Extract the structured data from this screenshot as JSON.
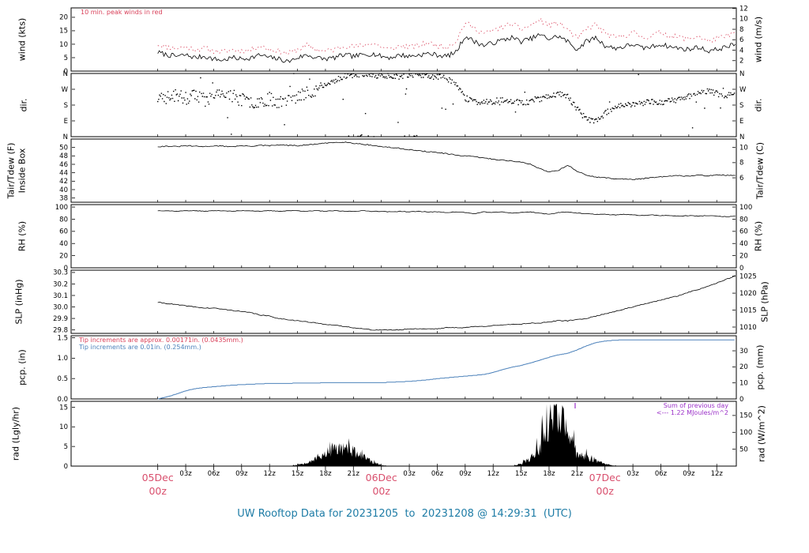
{
  "title": "UW Rooftop Data for 20231205  to  20231208 @ 14:29:31  (UTC)",
  "colors": {
    "day_label": "#d9506e",
    "title": "#1e7ca6",
    "purple": "#9b30c8",
    "peak_red": "#d9415a",
    "precip_blue": "#4d82bb"
  },
  "x_axis": {
    "units": "hours relative to 05Dec 00z (UTC)",
    "hours_domain": [
      -9.3,
      62.1
    ],
    "day_ticks": [
      {
        "hour": 0,
        "label": "05Dec",
        "sub": "00z"
      },
      {
        "hour": 24,
        "label": "06Dec",
        "sub": "00z"
      },
      {
        "hour": 48,
        "label": "07Dec",
        "sub": "00z"
      }
    ],
    "minor_ticks": [
      {
        "hour": 3,
        "label": "03z"
      },
      {
        "hour": 6,
        "label": "06z"
      },
      {
        "hour": 9,
        "label": "09z"
      },
      {
        "hour": 12,
        "label": "12z"
      },
      {
        "hour": 15,
        "label": "15z"
      },
      {
        "hour": 18,
        "label": "18z"
      },
      {
        "hour": 21,
        "label": "21z"
      },
      {
        "hour": 27,
        "label": "03z"
      },
      {
        "hour": 30,
        "label": "06z"
      },
      {
        "hour": 33,
        "label": "09z"
      },
      {
        "hour": 36,
        "label": "12z"
      },
      {
        "hour": 39,
        "label": "15z"
      },
      {
        "hour": 42,
        "label": "18z"
      },
      {
        "hour": 45,
        "label": "21z"
      },
      {
        "hour": 51,
        "label": "03z"
      },
      {
        "hour": 54,
        "label": "06z"
      },
      {
        "hour": 57,
        "label": "09z"
      },
      {
        "hour": 60,
        "label": "12z"
      }
    ]
  },
  "chart_data": [
    {
      "name": "wind",
      "type": "line",
      "ylabel_left": "wind (kts)",
      "ylabel_right": "wind (m/s)",
      "ylim": [
        0,
        23.5
      ],
      "yticks_left": [
        {
          "v": 0,
          "label": "0"
        },
        {
          "v": 5,
          "label": "5"
        },
        {
          "v": 10,
          "label": "10"
        },
        {
          "v": 15,
          "label": "15"
        },
        {
          "v": 20,
          "label": "20"
        }
      ],
      "yticks_right": [
        {
          "v": 3.89,
          "label": "2"
        },
        {
          "v": 7.78,
          "label": "4"
        },
        {
          "v": 11.66,
          "label": "6"
        },
        {
          "v": 15.55,
          "label": "8"
        },
        {
          "v": 19.44,
          "label": "10"
        },
        {
          "v": 23.33,
          "label": "12"
        }
      ],
      "annotation": "10 min. peak winds in red",
      "annotation_color": "#d9415a",
      "series": [
        {
          "name": "wind_speed_kts",
          "color": "#000000",
          "hourly": [
            7,
            6,
            5.5,
            6,
            5,
            5.5,
            4.5,
            4,
            5,
            4.5,
            5,
            6,
            5,
            4.5,
            3.5,
            5,
            6,
            5,
            4.5,
            5,
            6,
            5.5,
            6,
            6.5,
            5.5,
            5,
            6,
            5.5,
            6,
            6.5,
            6,
            5.5,
            7,
            13,
            11,
            9.5,
            10.5,
            11.5,
            12.5,
            11,
            12,
            13.5,
            12,
            13,
            11,
            8,
            11,
            12.5,
            9.5,
            8.5,
            9,
            10,
            8.5,
            9,
            10,
            9,
            8.5,
            8,
            9,
            7.5,
            8,
            9,
            10
          ]
        },
        {
          "name": "peak_wind_kts",
          "color": "#d9415a",
          "style": "dashed",
          "hourly": [
            10,
            9,
            8.5,
            9,
            8,
            8.5,
            7.5,
            7,
            8,
            7.5,
            8,
            9.5,
            8,
            7.5,
            6.5,
            8,
            9.5,
            8,
            7.5,
            8,
            9.5,
            9,
            9.5,
            10.5,
            9,
            8,
            9.5,
            9,
            9.5,
            10.5,
            9.5,
            9,
            11,
            18,
            16,
            14,
            15,
            16.5,
            17.5,
            15.5,
            17,
            19,
            17,
            18,
            15.5,
            12,
            15.5,
            17.5,
            14,
            12.5,
            13,
            14.5,
            12.5,
            13,
            14.5,
            13,
            12.5,
            12,
            13,
            11,
            12,
            13,
            14.5
          ]
        }
      ]
    },
    {
      "name": "dir",
      "type": "scatter",
      "ylabel_left": "dir.",
      "ylabel_right": "dir.",
      "ylim": [
        0,
        360
      ],
      "yticks_left": [
        {
          "v": 0,
          "label": "N"
        },
        {
          "v": 90,
          "label": "E"
        },
        {
          "v": 180,
          "label": "S"
        },
        {
          "v": 270,
          "label": "W"
        },
        {
          "v": 360,
          "label": "N"
        }
      ],
      "yticks_right": [
        {
          "v": 0,
          "label": "N"
        },
        {
          "v": 90,
          "label": "E"
        },
        {
          "v": 180,
          "label": "S"
        },
        {
          "v": 270,
          "label": "W"
        },
        {
          "v": 360,
          "label": "N"
        }
      ],
      "series": [
        {
          "name": "wind_direction_deg",
          "color": "#000000",
          "hourly": [
            210,
            225,
            235,
            220,
            230,
            215,
            225,
            240,
            230,
            210,
            195,
            205,
            215,
            200,
            210,
            225,
            250,
            270,
            290,
            320,
            345,
            350,
            355,
            350,
            345,
            350,
            340,
            355,
            350,
            345,
            340,
            335,
            300,
            220,
            200,
            195,
            200,
            210,
            205,
            195,
            200,
            215,
            230,
            245,
            230,
            160,
            100,
            90,
            130,
            170,
            185,
            180,
            190,
            200,
            195,
            205,
            210,
            230,
            250,
            260,
            245,
            235,
            240
          ]
        }
      ]
    },
    {
      "name": "temp",
      "type": "line",
      "ylabel_left": "Tair/Tdew (F)",
      "ylabel_left2": "Inside Box",
      "ylabel_right": "Tair/Tdew (C)",
      "ylim": [
        37,
        52
      ],
      "yticks_left": [
        {
          "v": 38,
          "label": "38"
        },
        {
          "v": 40,
          "label": "40"
        },
        {
          "v": 42,
          "label": "42"
        },
        {
          "v": 44,
          "label": "44"
        },
        {
          "v": 46,
          "label": "46"
        },
        {
          "v": 48,
          "label": "48"
        },
        {
          "v": 50,
          "label": "50"
        }
      ],
      "yticks_right": [
        {
          "v": 42.8,
          "label": "6"
        },
        {
          "v": 46.4,
          "label": "8"
        },
        {
          "v": 50,
          "label": "10"
        }
      ],
      "series": [
        {
          "name": "tair_f",
          "color": "#000000",
          "hourly": [
            50.2,
            50.3,
            50.2,
            50.4,
            50.3,
            50.2,
            50.4,
            50.3,
            50.2,
            50.4,
            50.3,
            50.5,
            50.4,
            50.6,
            50.5,
            50.4,
            50.6,
            50.8,
            51.0,
            51.2,
            51.3,
            51.0,
            50.8,
            50.5,
            50.2,
            50.0,
            49.8,
            49.5,
            49.2,
            49.0,
            48.8,
            48.5,
            48.2,
            48.0,
            47.8,
            47.5,
            47.2,
            47.0,
            46.8,
            46.5,
            46.0,
            45.0,
            44.2,
            44.6,
            45.8,
            44.4,
            43.4,
            43.0,
            42.8,
            42.6,
            42.5,
            42.4,
            42.6,
            42.8,
            43.0,
            43.2,
            43.3,
            43.2,
            43.4,
            43.3,
            43.5,
            43.4,
            43.3
          ]
        }
      ]
    },
    {
      "name": "rh",
      "type": "line",
      "ylabel_left": "RH (%)",
      "ylabel_right": "RH (%)",
      "ylim": [
        0,
        104
      ],
      "yticks_left": [
        {
          "v": 0,
          "label": "0"
        },
        {
          "v": 20,
          "label": "20"
        },
        {
          "v": 40,
          "label": "40"
        },
        {
          "v": 60,
          "label": "60"
        },
        {
          "v": 80,
          "label": "80"
        },
        {
          "v": 100,
          "label": "100"
        }
      ],
      "yticks_right": [
        {
          "v": 0,
          "label": "0"
        },
        {
          "v": 20,
          "label": "20"
        },
        {
          "v": 40,
          "label": "40"
        },
        {
          "v": 60,
          "label": "60"
        },
        {
          "v": 80,
          "label": "80"
        },
        {
          "v": 100,
          "label": "100"
        }
      ],
      "series": [
        {
          "name": "rh_pct",
          "color": "#000000",
          "hourly": [
            94,
            94,
            93,
            94,
            94,
            93,
            94,
            94,
            93,
            94,
            94,
            93,
            94,
            93,
            94,
            94,
            93,
            94,
            93,
            94,
            93,
            93,
            94,
            93,
            93,
            92,
            93,
            92,
            93,
            92,
            92,
            91,
            92,
            91,
            89,
            92,
            91,
            92,
            90,
            91,
            92,
            90,
            88,
            91,
            92,
            90,
            89,
            88,
            88,
            87,
            88,
            87,
            86,
            87,
            86,
            86,
            85,
            86,
            85,
            86,
            85,
            84,
            85
          ]
        }
      ]
    },
    {
      "name": "slp",
      "type": "line",
      "ylabel_left": "SLP (inHg)",
      "ylabel_right": "SLP (hPa)",
      "ylim": [
        29.77,
        30.32
      ],
      "yticks_left": [
        {
          "v": 29.8,
          "label": "29.8"
        },
        {
          "v": 29.9,
          "label": "29.9"
        },
        {
          "v": 30.0,
          "label": "30.0"
        },
        {
          "v": 30.1,
          "label": "30.1"
        },
        {
          "v": 30.2,
          "label": "30.2"
        },
        {
          "v": 30.3,
          "label": "30.3"
        }
      ],
      "yticks_right": [
        {
          "v": 29.825,
          "label": "1010"
        },
        {
          "v": 29.973,
          "label": "1015"
        },
        {
          "v": 30.12,
          "label": "1020"
        },
        {
          "v": 30.268,
          "label": "1025"
        }
      ],
      "series": [
        {
          "name": "slp_inhg",
          "color": "#000000",
          "hourly": [
            30.04,
            30.03,
            30.02,
            30.01,
            30.0,
            29.99,
            29.99,
            29.98,
            29.97,
            29.96,
            29.95,
            29.93,
            29.92,
            29.9,
            29.89,
            29.88,
            29.87,
            29.86,
            29.85,
            29.84,
            29.83,
            29.82,
            29.81,
            29.8,
            29.8,
            29.8,
            29.8,
            29.81,
            29.81,
            29.81,
            29.81,
            29.82,
            29.82,
            29.82,
            29.83,
            29.83,
            29.84,
            29.84,
            29.85,
            29.85,
            29.86,
            29.86,
            29.87,
            29.88,
            29.88,
            29.89,
            29.9,
            29.92,
            29.94,
            29.96,
            29.98,
            30.0,
            30.02,
            30.04,
            30.06,
            30.08,
            30.1,
            30.13,
            30.15,
            30.18,
            30.21,
            30.24,
            30.27
          ]
        }
      ]
    },
    {
      "name": "pcp",
      "type": "line",
      "ylabel_left": "pcp. (in)",
      "ylabel_right": "pcp. (mm)",
      "ylim": [
        0,
        1.55
      ],
      "yticks_left": [
        {
          "v": 0,
          "label": "0.0"
        },
        {
          "v": 0.5,
          "label": "0.5"
        },
        {
          "v": 1.0,
          "label": "1.0"
        },
        {
          "v": 1.5,
          "label": "1.5"
        }
      ],
      "yticks_right": [
        {
          "v": 0,
          "label": "0"
        },
        {
          "v": 0.394,
          "label": "10"
        },
        {
          "v": 0.787,
          "label": "20"
        },
        {
          "v": 1.181,
          "label": "30"
        }
      ],
      "annotations": [
        {
          "text": "Tip increments are approx. 0.00171in. (0.0435mm.)",
          "color": "#d9415a"
        },
        {
          "text": "Tip increments are 0.01in. (0.254mm.)",
          "color": "#4d82bb"
        }
      ],
      "series": [
        {
          "name": "cumulative_precip_in",
          "color": "#4d82bb",
          "hourly": [
            0.0,
            0.05,
            0.12,
            0.2,
            0.25,
            0.28,
            0.3,
            0.32,
            0.34,
            0.35,
            0.36,
            0.37,
            0.38,
            0.38,
            0.38,
            0.39,
            0.39,
            0.39,
            0.4,
            0.4,
            0.4,
            0.4,
            0.4,
            0.4,
            0.4,
            0.41,
            0.42,
            0.43,
            0.45,
            0.47,
            0.5,
            0.52,
            0.54,
            0.56,
            0.58,
            0.6,
            0.65,
            0.72,
            0.78,
            0.82,
            0.88,
            0.95,
            1.02,
            1.08,
            1.12,
            1.2,
            1.3,
            1.38,
            1.42,
            1.44,
            1.45,
            1.45,
            1.45,
            1.45,
            1.45,
            1.45,
            1.45,
            1.45,
            1.45,
            1.45,
            1.45,
            1.45,
            1.45
          ]
        }
      ]
    },
    {
      "name": "rad",
      "type": "area",
      "ylabel_left": "rad (Lgly/hr)",
      "ylabel_right": "rad (W/m^2)",
      "ylim": [
        0,
        16.5
      ],
      "yticks_left": [
        {
          "v": 0,
          "label": "0"
        },
        {
          "v": 5,
          "label": "5"
        },
        {
          "v": 10,
          "label": "10"
        },
        {
          "v": 15,
          "label": "15"
        }
      ],
      "yticks_right": [
        {
          "v": 4.3,
          "label": "50"
        },
        {
          "v": 8.6,
          "label": "100"
        },
        {
          "v": 12.9,
          "label": "150"
        }
      ],
      "annotations": [
        {
          "text": "Sum of previous day",
          "color": "#9b30c8"
        },
        {
          "text": "<--- 1.22 MJoules/m^2",
          "color": "#9b30c8"
        }
      ],
      "marker_hour": 44.8,
      "series": [
        {
          "name": "solar_rad_lgly_hr",
          "color": "#000000",
          "hourly": [
            0,
            0,
            0,
            0,
            0,
            0,
            0,
            0,
            0,
            0,
            0,
            0,
            0,
            0,
            0,
            0.3,
            1.0,
            2.0,
            3.2,
            4.2,
            4.6,
            3.6,
            2.4,
            1.0,
            0.2,
            0,
            0,
            0,
            0,
            0,
            0,
            0,
            0,
            0,
            0,
            0,
            0,
            0,
            0,
            0.5,
            2.0,
            5.0,
            12.0,
            15.0,
            8.0,
            3.0,
            2.2,
            1.5,
            0.6,
            0.1,
            0,
            0,
            0,
            0,
            0,
            0,
            0,
            0,
            0,
            0,
            0,
            0,
            0
          ]
        }
      ]
    }
  ]
}
